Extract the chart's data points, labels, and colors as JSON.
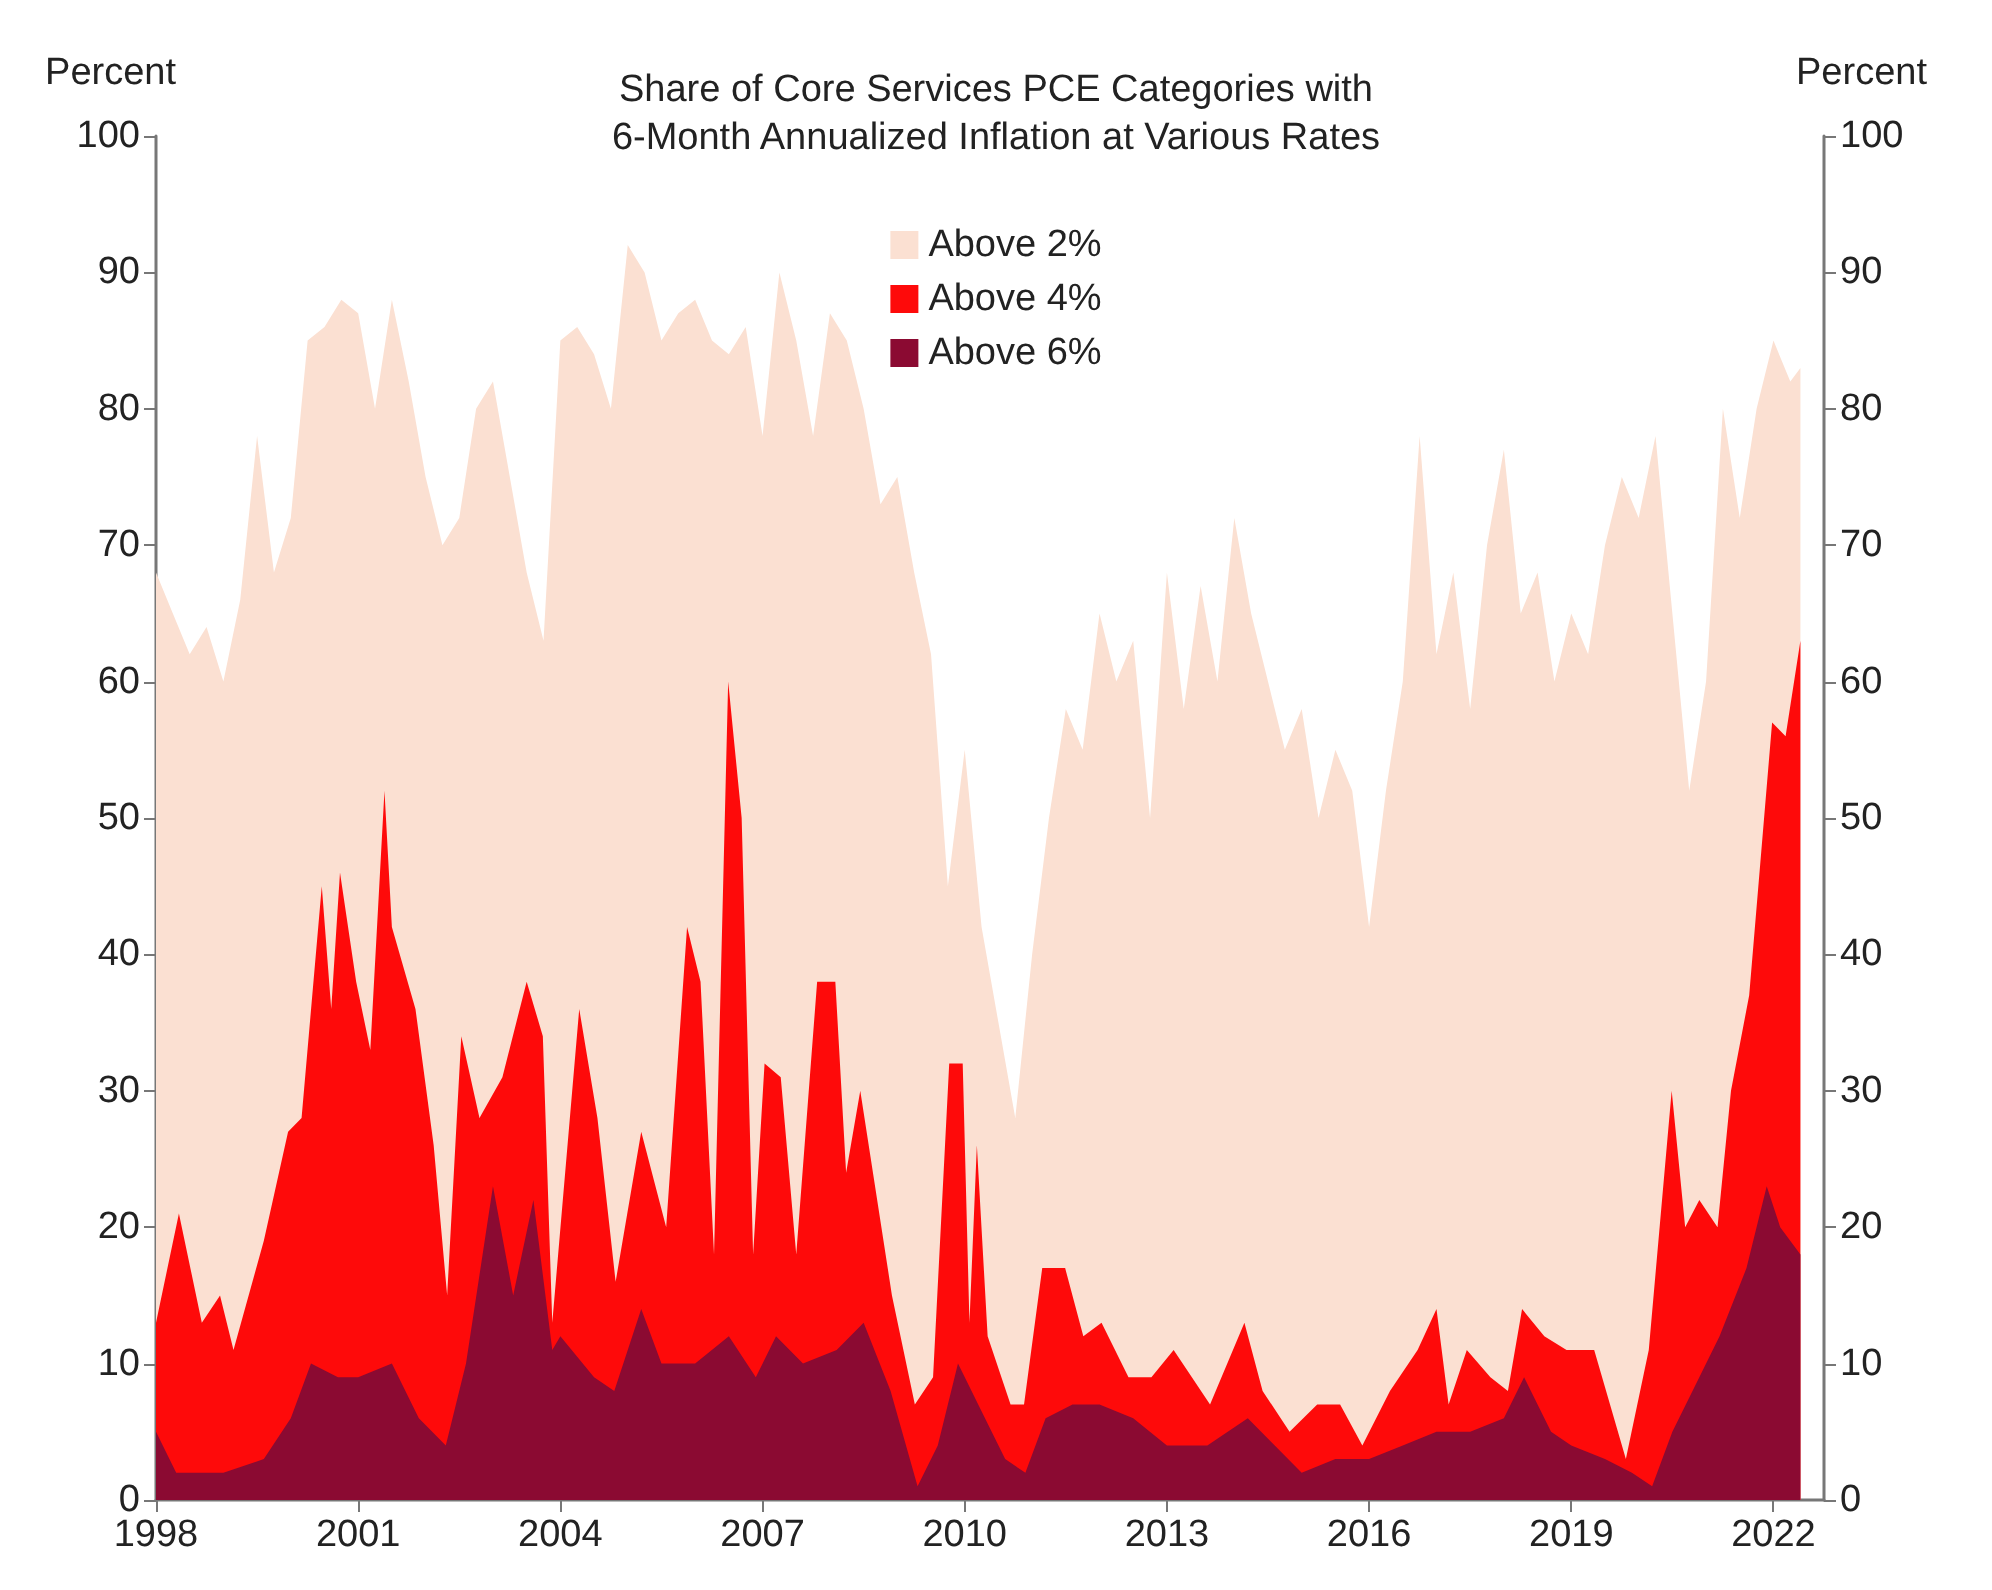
{
  "chart_data": {
    "type": "area",
    "title": "Share of Core Services PCE Categories with\n6-Month Annualized Inflation at Various Rates",
    "ylabel": "Percent",
    "y2label": "Percent",
    "xlim": [
      1998,
      2022.75
    ],
    "xticks": [
      1998,
      2001,
      2004,
      2007,
      2010,
      2013,
      2016,
      2019,
      2022
    ],
    "ylim": [
      0,
      100
    ],
    "yticks": [
      0,
      10,
      20,
      30,
      40,
      50,
      60,
      70,
      80,
      90,
      100
    ],
    "y2lim": [
      0,
      100
    ],
    "y2ticks": [
      0,
      10,
      20,
      30,
      40,
      50,
      60,
      70,
      80,
      90,
      100
    ],
    "grid": false,
    "legend": "top",
    "series": [
      {
        "name": "Above 2%",
        "color": "#fbe0d2",
        "x": [
          1998.0,
          1998.25,
          1998.5,
          1998.75,
          1999.0,
          1999.25,
          1999.5,
          1999.75,
          2000.0,
          2000.25,
          2000.5,
          2000.75,
          2001.0,
          2001.25,
          2001.5,
          2001.75,
          2002.0,
          2002.25,
          2002.5,
          2002.75,
          2003.0,
          2003.25,
          2003.5,
          2003.75,
          2004.0,
          2004.25,
          2004.5,
          2004.75,
          2005.0,
          2005.25,
          2005.5,
          2005.75,
          2006.0,
          2006.25,
          2006.5,
          2006.75,
          2007.0,
          2007.25,
          2007.5,
          2007.75,
          2008.0,
          2008.25,
          2008.5,
          2008.75,
          2009.0,
          2009.25,
          2009.5,
          2009.75,
          2010.0,
          2010.25,
          2010.5,
          2010.75,
          2011.0,
          2011.25,
          2011.5,
          2011.75,
          2012.0,
          2012.25,
          2012.5,
          2012.75,
          2013.0,
          2013.25,
          2013.5,
          2013.75,
          2014.0,
          2014.25,
          2014.5,
          2014.75,
          2015.0,
          2015.25,
          2015.5,
          2015.75,
          2016.0,
          2016.25,
          2016.5,
          2016.75,
          2017.0,
          2017.25,
          2017.5,
          2017.75,
          2018.0,
          2018.25,
          2018.5,
          2018.75,
          2019.0,
          2019.25,
          2019.5,
          2019.75,
          2020.0,
          2020.25,
          2020.5,
          2020.75,
          2021.0,
          2021.25,
          2021.5,
          2021.75,
          2022.0,
          2022.25,
          2022.4
        ],
        "values": [
          68,
          65,
          62,
          64,
          60,
          66,
          78,
          68,
          72,
          85,
          86,
          88,
          87,
          80,
          88,
          82,
          75,
          70,
          72,
          80,
          82,
          75,
          68,
          63,
          85,
          86,
          84,
          80,
          92,
          90,
          85,
          87,
          88,
          85,
          84,
          86,
          78,
          90,
          85,
          78,
          87,
          85,
          80,
          73,
          75,
          68,
          62,
          45,
          55,
          42,
          35,
          28,
          40,
          50,
          58,
          55,
          65,
          60,
          63,
          50,
          68,
          58,
          67,
          60,
          72,
          65,
          60,
          55,
          58,
          50,
          55,
          52,
          42,
          52,
          60,
          78,
          62,
          68,
          58,
          70,
          77,
          65,
          68,
          60,
          65,
          62,
          70,
          75,
          72,
          78,
          65,
          52,
          60,
          80,
          72,
          80,
          85,
          82,
          83
        ]
      },
      {
        "name": "Above 4%",
        "color": "#fe0a0a",
        "x": [
          1998.0,
          1998.34,
          1998.68,
          1998.95,
          1999.15,
          1999.6,
          1999.96,
          2000.16,
          2000.46,
          2000.6,
          2000.73,
          2000.97,
          2001.18,
          2001.39,
          2001.5,
          2001.85,
          2002.12,
          2002.32,
          2002.53,
          2002.8,
          2003.14,
          2003.5,
          2003.74,
          2003.88,
          2004.28,
          2004.55,
          2004.82,
          2005.2,
          2005.57,
          2005.88,
          2006.08,
          2006.28,
          2006.49,
          2006.69,
          2006.86,
          2007.03,
          2007.27,
          2007.5,
          2007.81,
          2008.08,
          2008.24,
          2008.45,
          2008.92,
          2009.26,
          2009.53,
          2009.77,
          2009.97,
          2010.07,
          2010.18,
          2010.34,
          2010.68,
          2010.88,
          2011.15,
          2011.49,
          2011.76,
          2012.03,
          2012.43,
          2012.77,
          2013.1,
          2013.64,
          2014.15,
          2014.42,
          2014.82,
          2015.23,
          2015.57,
          2015.9,
          2016.31,
          2016.72,
          2017.0,
          2017.18,
          2017.45,
          2017.8,
          2018.06,
          2018.27,
          2018.6,
          2018.93,
          2019.34,
          2019.81,
          2020.15,
          2020.49,
          2020.69,
          2020.9,
          2021.17,
          2021.37,
          2021.64,
          2021.98,
          2022.18,
          2022.4
        ],
        "values": [
          13,
          21,
          13,
          15,
          11,
          19,
          27,
          28,
          45,
          36,
          46,
          38,
          33,
          52,
          42,
          36,
          26,
          15,
          34,
          28,
          31,
          38,
          34,
          13,
          36,
          28,
          16,
          27,
          20,
          42,
          38,
          18,
          60,
          50,
          18,
          32,
          31,
          18,
          38,
          38,
          24,
          30,
          15,
          7,
          9,
          32,
          32,
          13,
          26,
          12,
          7,
          7,
          17,
          17,
          12,
          13,
          9,
          9,
          11,
          7,
          13,
          8,
          5,
          7,
          7,
          4,
          8,
          11,
          14,
          7,
          11,
          9,
          8,
          14,
          12,
          11,
          11,
          3,
          11,
          30,
          20,
          22,
          20,
          30,
          37,
          57,
          56,
          63
        ]
      },
      {
        "name": "Above 6%",
        "color": "#8b0a32",
        "x": [
          1998.0,
          1998.3,
          1999.0,
          1999.6,
          2000.0,
          2000.3,
          2000.7,
          2001.0,
          2001.5,
          2001.9,
          2002.3,
          2002.6,
          2003.0,
          2003.3,
          2003.6,
          2003.88,
          2004.0,
          2004.5,
          2004.8,
          2005.2,
          2005.5,
          2006.0,
          2006.5,
          2006.9,
          2007.2,
          2007.6,
          2008.1,
          2008.5,
          2008.9,
          2009.3,
          2009.6,
          2009.9,
          2010.2,
          2010.6,
          2010.9,
          2011.2,
          2011.6,
          2012.0,
          2012.5,
          2013.0,
          2013.6,
          2014.2,
          2014.6,
          2015.0,
          2015.5,
          2016.0,
          2016.5,
          2017.0,
          2017.5,
          2018.0,
          2018.3,
          2018.7,
          2019.0,
          2019.5,
          2019.9,
          2020.2,
          2020.5,
          2020.9,
          2021.2,
          2021.6,
          2021.9,
          2022.1,
          2022.4
        ],
        "values": [
          5,
          2,
          2,
          3,
          6,
          10,
          9,
          9,
          10,
          6,
          4,
          10,
          23,
          15,
          22,
          11,
          12,
          9,
          8,
          14,
          10,
          10,
          12,
          9,
          12,
          10,
          11,
          13,
          8,
          1,
          4,
          10,
          7,
          3,
          2,
          6,
          7,
          7,
          6,
          4,
          4,
          6,
          4,
          2,
          3,
          3,
          4,
          5,
          5,
          6,
          9,
          5,
          4,
          3,
          2,
          1,
          5,
          9,
          12,
          17,
          23,
          20,
          18
        ]
      }
    ]
  }
}
